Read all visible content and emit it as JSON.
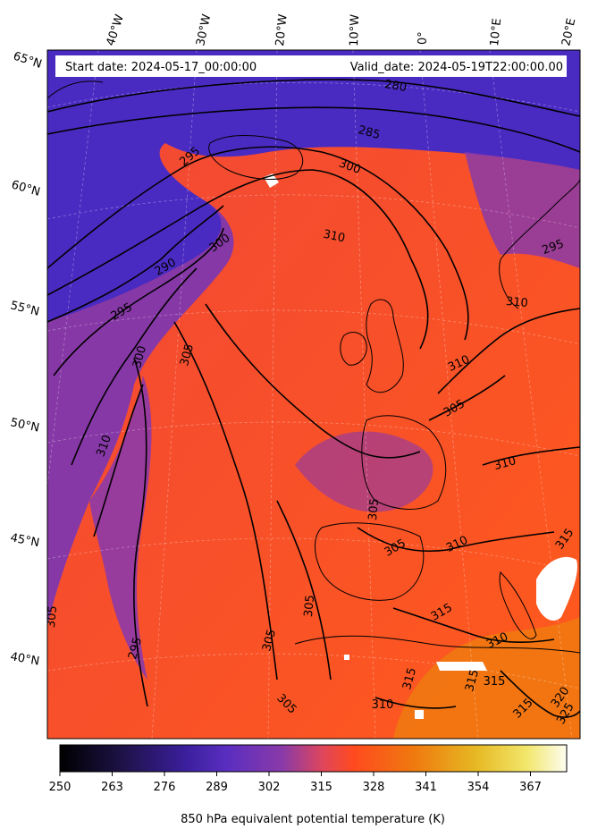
{
  "header": {
    "start_date": "Start date: 2024-05-17_00:00:00",
    "valid_date": "Valid_date: 2024-05-19T22:00:00.00"
  },
  "gridlines": {
    "longitudes": [
      "40°W",
      "30°W",
      "20°W",
      "10°W",
      "0°",
      "10°E",
      "20°E"
    ],
    "latitudes": [
      "65°N",
      "60°N",
      "55°N",
      "50°N",
      "45°N",
      "40°N"
    ]
  },
  "contour_labels": [
    "280",
    "285",
    "295",
    "300",
    "300",
    "290",
    "295",
    "310",
    "300",
    "305",
    "310",
    "310",
    "310",
    "305",
    "310",
    "305",
    "305",
    "310",
    "315",
    "315",
    "310",
    "315",
    "315",
    "305",
    "295",
    "305",
    "305",
    "305",
    "295",
    "310",
    "315",
    "320",
    "325",
    "315"
  ],
  "colorbar": {
    "label": "850 hPa equivalent potential temperature (K)",
    "ticks": [
      "250",
      "263",
      "276",
      "289",
      "302",
      "315",
      "328",
      "341",
      "354",
      "367"
    ],
    "colors": [
      "#000000",
      "#1d1245",
      "#3b1f9e",
      "#5a2ec0",
      "#8a3aa8",
      "#e0465a",
      "#ff4a1f",
      "#ef7a0e",
      "#e6b823",
      "#f2e66a",
      "#fdfdf0"
    ]
  },
  "colors": {
    "cold": "#4a2bc2",
    "mid": "#8a3aa8",
    "warm": "#ff4a2a",
    "hot": "#f07a10"
  }
}
